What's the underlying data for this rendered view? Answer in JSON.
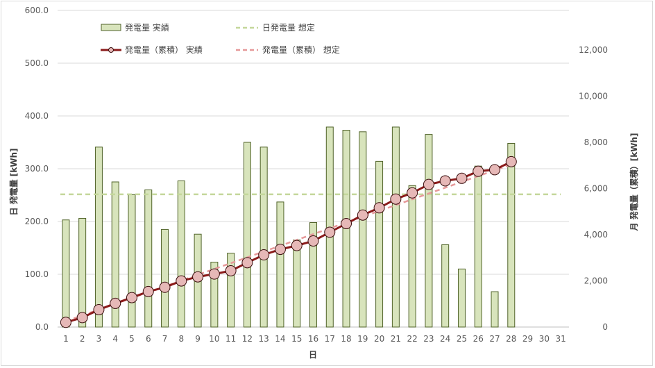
{
  "chart_data": {
    "type": "bar",
    "x_axis": {
      "label": "日",
      "categories": [
        "1",
        "2",
        "3",
        "4",
        "5",
        "6",
        "7",
        "8",
        "9",
        "10",
        "11",
        "12",
        "13",
        "14",
        "15",
        "16",
        "17",
        "18",
        "19",
        "20",
        "21",
        "22",
        "23",
        "24",
        "25",
        "26",
        "27",
        "28",
        "29",
        "30",
        "31"
      ]
    },
    "y_left": {
      "label": "日 発電量 [kWh]",
      "ylim": [
        0,
        600
      ],
      "ticks": [
        "0.0",
        "100.0",
        "200.0",
        "300.0",
        "400.0",
        "500.0",
        "600.0"
      ],
      "tick_values": [
        0,
        100,
        200,
        300,
        400,
        500,
        600
      ]
    },
    "y_right": {
      "label": "月 発電量（累積）[kWh]",
      "ylim": [
        0,
        13714
      ],
      "ticks": [
        "0",
        "2,000",
        "4,000",
        "6,000",
        "8,000",
        "10,000",
        "12,000"
      ],
      "tick_values": [
        0,
        2000,
        4000,
        6000,
        8000,
        10000,
        12000
      ]
    },
    "grid": "horizontal",
    "legend_position": "top",
    "series": [
      {
        "name": "発電量 実績",
        "type": "bar",
        "axis": "left",
        "color": "#d8e4bc",
        "edge_color": "#4f6228",
        "values": [
          203,
          206,
          341,
          275,
          251,
          260,
          185,
          277,
          176,
          123,
          140,
          350,
          341,
          237,
          165,
          198,
          379,
          373,
          370,
          314,
          379,
          268,
          365,
          156,
          110,
          305,
          67,
          348
        ]
      },
      {
        "name": "日発電量 想定",
        "type": "line",
        "axis": "left",
        "style": "dashed",
        "color": "#c4d79b",
        "values": [
          251.5,
          251.5,
          251.5,
          251.5,
          251.5,
          251.5,
          251.5,
          251.5,
          251.5,
          251.5,
          251.5,
          251.5,
          251.5,
          251.5,
          251.5,
          251.5,
          251.5,
          251.5,
          251.5,
          251.5,
          251.5,
          251.5,
          251.5,
          251.5,
          251.5,
          251.5,
          251.5,
          251.5,
          251.5,
          251.5,
          251.5
        ]
      },
      {
        "name": "発電量（累積） 実績",
        "type": "line",
        "axis": "right",
        "color": "#8b1a1a",
        "marker_color": "#e6b8b7",
        "values": [
          203,
          409,
          750,
          1025,
          1276,
          1536,
          1721,
          1998,
          2174,
          2297,
          2437,
          2787,
          3128,
          3365,
          3530,
          3728,
          4107,
          4480,
          4850,
          5164,
          5543,
          5811,
          6176,
          6332,
          6442,
          6747,
          6814,
          7162
        ]
      },
      {
        "name": "発電量（累積） 想定",
        "type": "line",
        "axis": "right",
        "style": "dashed",
        "color": "#e6999a",
        "values": [
          252,
          503,
          755,
          1006,
          1258,
          1509,
          1761,
          2012,
          2264,
          2515,
          2767,
          3018,
          3270,
          3521,
          3773,
          4024,
          4276,
          4527,
          4779,
          5030,
          5282,
          5533,
          5785,
          6036,
          6288,
          6539,
          6791,
          7042
        ]
      }
    ]
  }
}
